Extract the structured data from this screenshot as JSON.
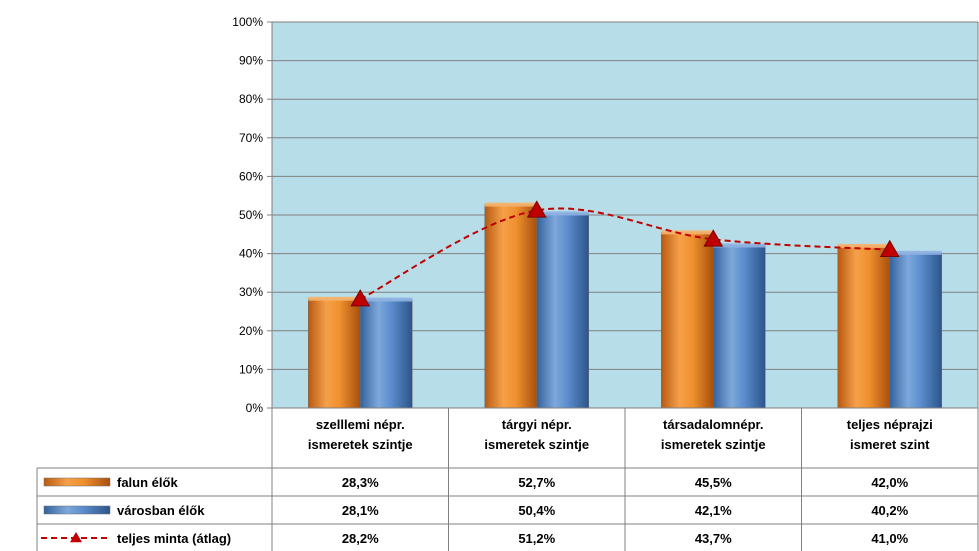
{
  "chart_data": {
    "type": "bar",
    "categories": [
      [
        "szelllemi népr.",
        "ismeretek szintje"
      ],
      [
        "tárgyi népr.",
        "ismeretek szintje"
      ],
      [
        "társadalomnépr.",
        "ismeretek szintje"
      ],
      [
        "teljes néprajzi",
        "ismeret szint"
      ]
    ],
    "series": [
      {
        "name": "falun élők",
        "kind": "bar",
        "color": "#e8801f",
        "values": [
          28.3,
          52.7,
          45.5,
          42.0
        ],
        "labels": [
          "28,3%",
          "52,7%",
          "45,5%",
          "42,0%"
        ]
      },
      {
        "name": "városban élők",
        "kind": "bar",
        "color": "#4f81bd",
        "values": [
          28.1,
          50.4,
          42.1,
          40.2
        ],
        "labels": [
          "28,1%",
          "50,4%",
          "42,1%",
          "40,2%"
        ]
      },
      {
        "name": "teljes minta (átlag)",
        "kind": "line",
        "style": "dashed",
        "marker": "triangle",
        "color": "#c00000",
        "values": [
          28.2,
          51.2,
          43.7,
          41.0
        ],
        "labels": [
          "28,2%",
          "51,2%",
          "43,7%",
          "41,0%"
        ]
      }
    ],
    "yticks": [
      "0%",
      "10%",
      "20%",
      "30%",
      "40%",
      "50%",
      "60%",
      "70%",
      "80%",
      "90%",
      "100%"
    ],
    "ylim": [
      0,
      100
    ],
    "grid": true,
    "plot_background": "#b7dde8",
    "legend": "data-table"
  }
}
